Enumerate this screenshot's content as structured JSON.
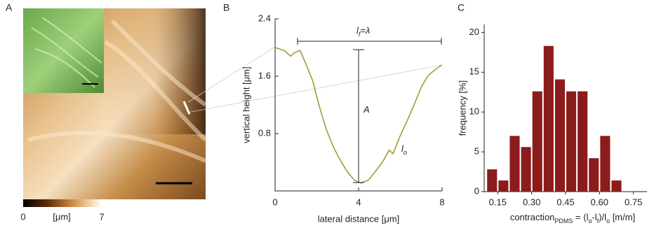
{
  "chart_data": [
    {
      "type": "image",
      "label": "A",
      "colorbar_labels": [
        "0",
        "[μm]",
        "7"
      ]
    },
    {
      "type": "line",
      "label": "B",
      "xlabel": "lateral distance [μm]",
      "ylabel": "vertical height [μm]",
      "annotations": {
        "span": [
          "l",
          "f",
          "=λ"
        ],
        "amplitude": [
          "A"
        ],
        "length": [
          "l",
          "o"
        ]
      },
      "x": [
        0,
        0.44,
        0.74,
        0.94,
        1.2,
        1.45,
        1.8,
        2.1,
        2.45,
        2.8,
        3.1,
        3.45,
        3.8,
        4.1,
        4.47,
        4.8,
        5.14,
        5.47,
        5.65,
        5.98,
        6.3,
        6.66,
        6.99,
        7.33,
        7.66,
        8.0
      ],
      "series": [
        {
          "color": "#a39a3c",
          "values": [
            2.0,
            1.96,
            1.88,
            1.93,
            1.96,
            1.79,
            1.54,
            1.2,
            0.86,
            0.61,
            0.44,
            0.27,
            0.15,
            0.11,
            0.15,
            0.27,
            0.4,
            0.57,
            0.52,
            0.76,
            0.96,
            1.2,
            1.44,
            1.61,
            1.69,
            1.76
          ]
        }
      ],
      "xlim": [
        0,
        8
      ],
      "xticks": [
        0,
        4,
        8
      ],
      "ylim": [
        0,
        2.4
      ],
      "yticks": [
        0.8,
        1.6,
        2.4
      ]
    },
    {
      "type": "histogram",
      "label": "C",
      "xlabel": [
        "contraction",
        "PDMS",
        " = (l",
        "o",
        "-l",
        "f",
        ")/l",
        "o",
        " [m/m]"
      ],
      "ylabel": "frequency [%]",
      "bins": [
        0.1,
        0.15,
        0.2,
        0.25,
        0.3,
        0.35,
        0.4,
        0.45,
        0.5,
        0.55,
        0.6,
        0.65,
        0.7
      ],
      "values": [
        2.8,
        1.4,
        7.0,
        5.6,
        12.6,
        18.3,
        14.1,
        12.6,
        12.6,
        4.2,
        7.0,
        1.4
      ],
      "color": "#8b1c1c",
      "xlim": [
        0.09,
        0.81
      ],
      "xticks": [
        0.15,
        {
          "value": 0.3,
          "label": "0.30"
        },
        0.45,
        {
          "value": 0.6,
          "label": "0.60"
        },
        0.75
      ],
      "ylim": [
        0,
        21
      ],
      "yticks": [
        0,
        5,
        10,
        15,
        20
      ]
    }
  ]
}
